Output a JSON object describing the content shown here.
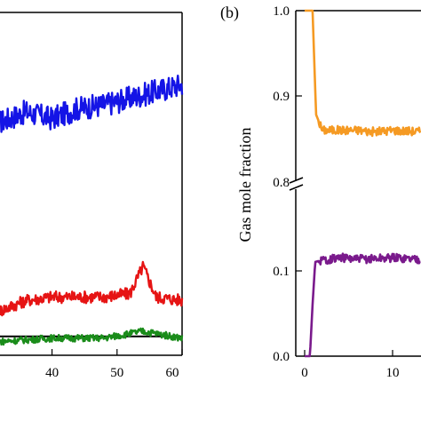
{
  "chart_data": [
    {
      "type": "line",
      "panel_label": "",
      "xlabel": "",
      "ylabel": "",
      "xlim": [
        32,
        60
      ],
      "ylim": [
        0,
        1
      ],
      "x_ticks": [
        "40",
        "50",
        "60"
      ],
      "series": [
        {
          "color": "#1414e6",
          "level": 0.72,
          "x": [
            32,
            36,
            40,
            44,
            48,
            52,
            56,
            60
          ],
          "values": [
            0.68,
            0.71,
            0.69,
            0.72,
            0.73,
            0.75,
            0.77,
            0.79
          ]
        },
        {
          "color": "#e61414",
          "level": 0.17,
          "x": [
            32,
            36,
            40,
            44,
            48,
            52,
            54,
            56,
            60
          ],
          "values": [
            0.13,
            0.16,
            0.17,
            0.17,
            0.17,
            0.18,
            0.26,
            0.17,
            0.16
          ]
        },
        {
          "color": "#000000",
          "level": 0.055,
          "x": [
            32,
            46,
            60
          ],
          "values": [
            0.055,
            0.055,
            0.055
          ]
        },
        {
          "color": "#1a8c1a",
          "level": 0.05,
          "x": [
            32,
            40,
            48,
            54,
            60
          ],
          "values": [
            0.04,
            0.05,
            0.05,
            0.07,
            0.05
          ]
        }
      ]
    },
    {
      "type": "line",
      "panel_label": "(b)",
      "ylabel": "Gas mole fraction",
      "xlim": [
        0,
        18
      ],
      "y_broken_axis": true,
      "upper_ylim": [
        0.8,
        1.0
      ],
      "lower_ylim": [
        0.0,
        0.2
      ],
      "y_ticks_upper": [
        "1.0",
        "0.9",
        "0.8"
      ],
      "y_ticks_lower": [
        "0.1",
        "0.0"
      ],
      "x_ticks": [
        "0",
        "10"
      ],
      "series": [
        {
          "color": "#f59a23",
          "x": [
            0,
            0.9,
            1.3,
            2,
            4,
            6,
            8,
            10,
            14,
            18
          ],
          "values": [
            1.0,
            1.0,
            0.88,
            0.862,
            0.862,
            0.862,
            0.86,
            0.862,
            0.86,
            0.86
          ]
        },
        {
          "color": "#7a1a8c",
          "x": [
            0,
            0.6,
            0.9,
            1.2,
            2,
            4,
            6,
            10,
            14,
            18
          ],
          "values": [
            0.0,
            0.0,
            0.06,
            0.11,
            0.112,
            0.115,
            0.113,
            0.115,
            0.113,
            0.113
          ]
        }
      ]
    }
  ]
}
